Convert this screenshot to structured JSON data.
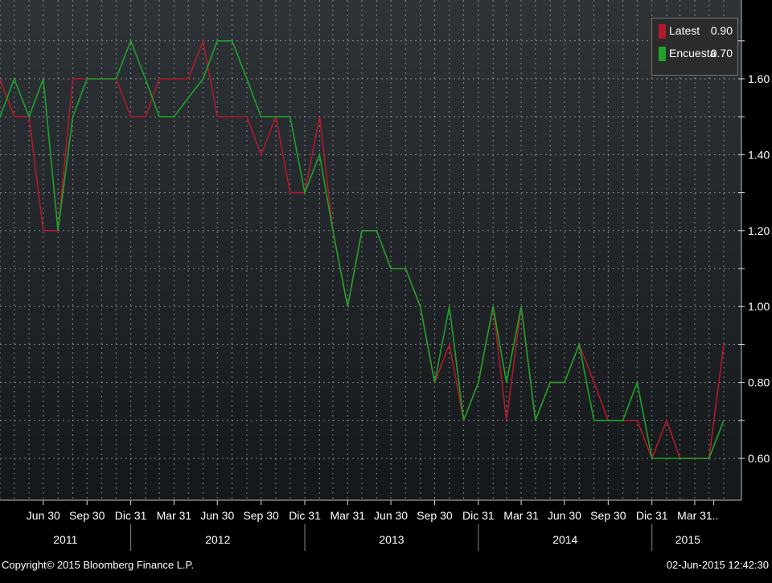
{
  "chart_data": {
    "type": "line",
    "x": [
      "2011-03-31",
      "2011-04-30",
      "2011-05-31",
      "2011-06-30",
      "2011-07-31",
      "2011-08-31",
      "2011-09-30",
      "2011-10-31",
      "2011-11-30",
      "2011-12-31",
      "2012-01-31",
      "2012-02-29",
      "2012-03-31",
      "2012-04-30",
      "2012-05-31",
      "2012-06-30",
      "2012-07-31",
      "2012-08-31",
      "2012-09-30",
      "2012-10-31",
      "2012-11-30",
      "2012-12-31",
      "2013-01-31",
      "2013-02-28",
      "2013-03-31",
      "2013-04-30",
      "2013-05-31",
      "2013-06-30",
      "2013-07-31",
      "2013-08-31",
      "2013-09-30",
      "2013-10-31",
      "2013-11-30",
      "2013-12-31",
      "2014-01-31",
      "2014-02-28",
      "2014-03-31",
      "2014-04-30",
      "2014-05-31",
      "2014-06-30",
      "2014-07-31",
      "2014-08-31",
      "2014-09-30",
      "2014-10-31",
      "2014-11-30",
      "2014-12-31",
      "2015-01-31",
      "2015-02-28",
      "2015-03-31",
      "2015-04-30",
      "2015-05-31"
    ],
    "series": [
      {
        "name": "Latest",
        "color": "#b01a2a",
        "values": [
          1.6,
          1.5,
          1.5,
          1.2,
          1.2,
          1.6,
          1.6,
          1.6,
          1.6,
          1.5,
          1.5,
          1.6,
          1.6,
          1.6,
          1.7,
          1.5,
          1.5,
          1.5,
          1.4,
          1.5,
          1.3,
          1.3,
          1.5,
          1.2,
          1.0,
          1.2,
          1.2,
          1.1,
          1.1,
          1.0,
          0.8,
          0.9,
          0.7,
          0.8,
          1.0,
          0.7,
          1.0,
          0.7,
          0.8,
          0.8,
          0.9,
          0.8,
          0.7,
          0.7,
          0.7,
          0.6,
          0.7,
          0.6,
          0.6,
          0.6,
          0.9
        ]
      },
      {
        "name": "Encuesta",
        "color": "#1fa22a",
        "values": [
          1.5,
          1.6,
          1.5,
          1.6,
          1.2,
          1.5,
          1.6,
          1.6,
          1.6,
          1.7,
          1.6,
          1.5,
          1.5,
          1.55,
          1.6,
          1.7,
          1.7,
          1.6,
          1.5,
          1.5,
          1.5,
          1.3,
          1.4,
          1.2,
          1.0,
          1.2,
          1.2,
          1.1,
          1.1,
          1.0,
          0.8,
          1.0,
          0.7,
          0.8,
          1.0,
          0.8,
          1.0,
          0.7,
          0.8,
          0.8,
          0.9,
          0.7,
          0.7,
          0.7,
          0.8,
          0.6,
          0.6,
          0.6,
          0.6,
          0.6,
          0.7
        ]
      }
    ],
    "legend": {
      "items": [
        {
          "name": "Latest",
          "value": "0.90",
          "color": "#b01a2a"
        },
        {
          "name": "Encuesta",
          "value": "0.70",
          "color": "#1fa22a"
        }
      ],
      "position": "top-right"
    },
    "yticks": [
      "0.60",
      "0.80",
      "1.00",
      "1.20",
      "1.40",
      "1.60"
    ],
    "yticks_values": [
      0.6,
      0.8,
      1.0,
      1.2,
      1.4,
      1.6
    ],
    "ylim": [
      0.5,
      1.8
    ],
    "xrange": [
      "2011-03-31",
      "2015-05-31"
    ],
    "xticks": [
      {
        "label": "Jun 30",
        "date": "2011-06-30"
      },
      {
        "label": "Sep 30",
        "date": "2011-09-30"
      },
      {
        "label": "Dic 31",
        "date": "2011-12-31"
      },
      {
        "label": "Mar 31",
        "date": "2012-03-31"
      },
      {
        "label": "Jun 30",
        "date": "2012-06-30"
      },
      {
        "label": "Sep 30",
        "date": "2012-09-30"
      },
      {
        "label": "Dic 31",
        "date": "2012-12-31"
      },
      {
        "label": "Mar 31",
        "date": "2013-03-31"
      },
      {
        "label": "Jun 30",
        "date": "2013-06-30"
      },
      {
        "label": "Sep 30",
        "date": "2013-09-30"
      },
      {
        "label": "Dic 31",
        "date": "2013-12-31"
      },
      {
        "label": "Mar 31",
        "date": "2014-03-31"
      },
      {
        "label": "Jun 30",
        "date": "2014-06-30"
      },
      {
        "label": "Sep 30",
        "date": "2014-09-30"
      },
      {
        "label": "Dic 31",
        "date": "2014-12-31"
      },
      {
        "label": "Mar 31",
        "date": "2015-03-31"
      },
      {
        "label": "...",
        "date": "2015-05-10"
      }
    ],
    "years": [
      {
        "label": "2011",
        "start": "2011-03-31",
        "end": "2011-12-31"
      },
      {
        "label": "2012",
        "start": "2011-12-31",
        "end": "2012-12-31"
      },
      {
        "label": "2013",
        "start": "2012-12-31",
        "end": "2013-12-31"
      },
      {
        "label": "2014",
        "start": "2013-12-31",
        "end": "2014-12-31"
      },
      {
        "label": "2015",
        "start": "2014-12-31",
        "end": "2015-05-31"
      }
    ],
    "grid": true
  },
  "footer": {
    "copyright": "Copyright© 2015 Bloomberg Finance L.P.",
    "timestamp": "02-Jun-2015 12:42:30"
  },
  "colors": {
    "background": "#000000",
    "plot_background_top": "#2e3338",
    "plot_background_bottom": "#15181b",
    "grid": "#d0d0d0"
  }
}
